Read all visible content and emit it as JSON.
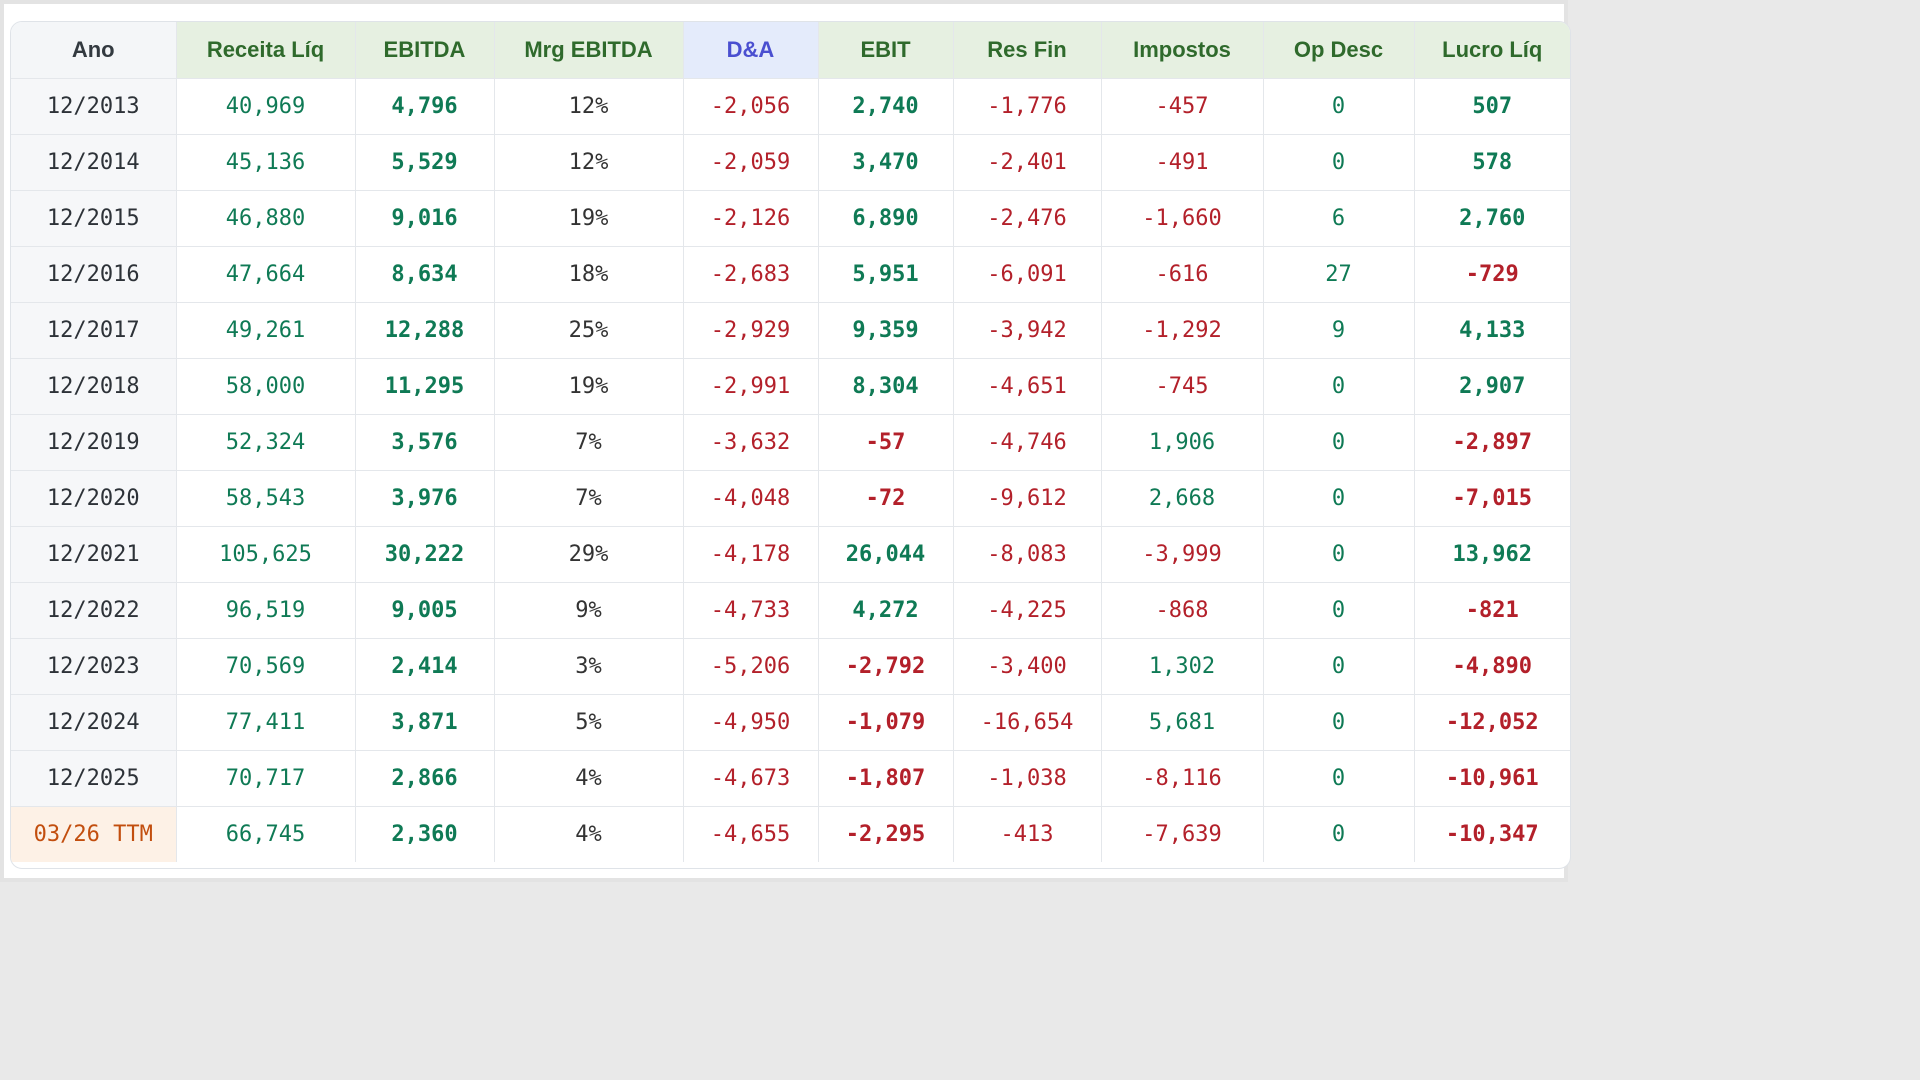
{
  "table": {
    "headers": [
      "Ano",
      "Receita Líq",
      "EBITDA",
      "Mrg EBITDA",
      "D&A",
      "EBIT",
      "Res Fin",
      "Impostos",
      "Op Desc",
      "Lucro Líq"
    ],
    "rows": [
      [
        "12/2013",
        "40,969",
        "4,796",
        "12%",
        "-2,056",
        "2,740",
        "-1,776",
        "-457",
        "0",
        "507"
      ],
      [
        "12/2014",
        "45,136",
        "5,529",
        "12%",
        "-2,059",
        "3,470",
        "-2,401",
        "-491",
        "0",
        "578"
      ],
      [
        "12/2015",
        "46,880",
        "9,016",
        "19%",
        "-2,126",
        "6,890",
        "-2,476",
        "-1,660",
        "6",
        "2,760"
      ],
      [
        "12/2016",
        "47,664",
        "8,634",
        "18%",
        "-2,683",
        "5,951",
        "-6,091",
        "-616",
        "27",
        "-729"
      ],
      [
        "12/2017",
        "49,261",
        "12,288",
        "25%",
        "-2,929",
        "9,359",
        "-3,942",
        "-1,292",
        "9",
        "4,133"
      ],
      [
        "12/2018",
        "58,000",
        "11,295",
        "19%",
        "-2,991",
        "8,304",
        "-4,651",
        "-745",
        "0",
        "2,907"
      ],
      [
        "12/2019",
        "52,324",
        "3,576",
        "7%",
        "-3,632",
        "-57",
        "-4,746",
        "1,906",
        "0",
        "-2,897"
      ],
      [
        "12/2020",
        "58,543",
        "3,976",
        "7%",
        "-4,048",
        "-72",
        "-9,612",
        "2,668",
        "0",
        "-7,015"
      ],
      [
        "12/2021",
        "105,625",
        "30,222",
        "29%",
        "-4,178",
        "26,044",
        "-8,083",
        "-3,999",
        "0",
        "13,962"
      ],
      [
        "12/2022",
        "96,519",
        "9,005",
        "9%",
        "-4,733",
        "4,272",
        "-4,225",
        "-868",
        "0",
        "-821"
      ],
      [
        "12/2023",
        "70,569",
        "2,414",
        "3%",
        "-5,206",
        "-2,792",
        "-3,400",
        "1,302",
        "0",
        "-4,890"
      ],
      [
        "12/2024",
        "77,411",
        "3,871",
        "5%",
        "-4,950",
        "-1,079",
        "-16,654",
        "5,681",
        "0",
        "-12,052"
      ],
      [
        "12/2025",
        "70,717",
        "2,866",
        "4%",
        "-4,673",
        "-1,807",
        "-1,038",
        "-8,116",
        "0",
        "-10,961"
      ],
      [
        "03/26 TTM",
        "66,745",
        "2,360",
        "4%",
        "-4,655",
        "-2,295",
        "-413",
        "-7,639",
        "0",
        "-10,347"
      ]
    ]
  },
  "colors": {
    "positive": "#0f7a55",
    "negative": "#b3202a",
    "header_green": "#2f6a2c",
    "header_da": "#4a4fd0",
    "ttm_accent": "#c24e0e"
  }
}
